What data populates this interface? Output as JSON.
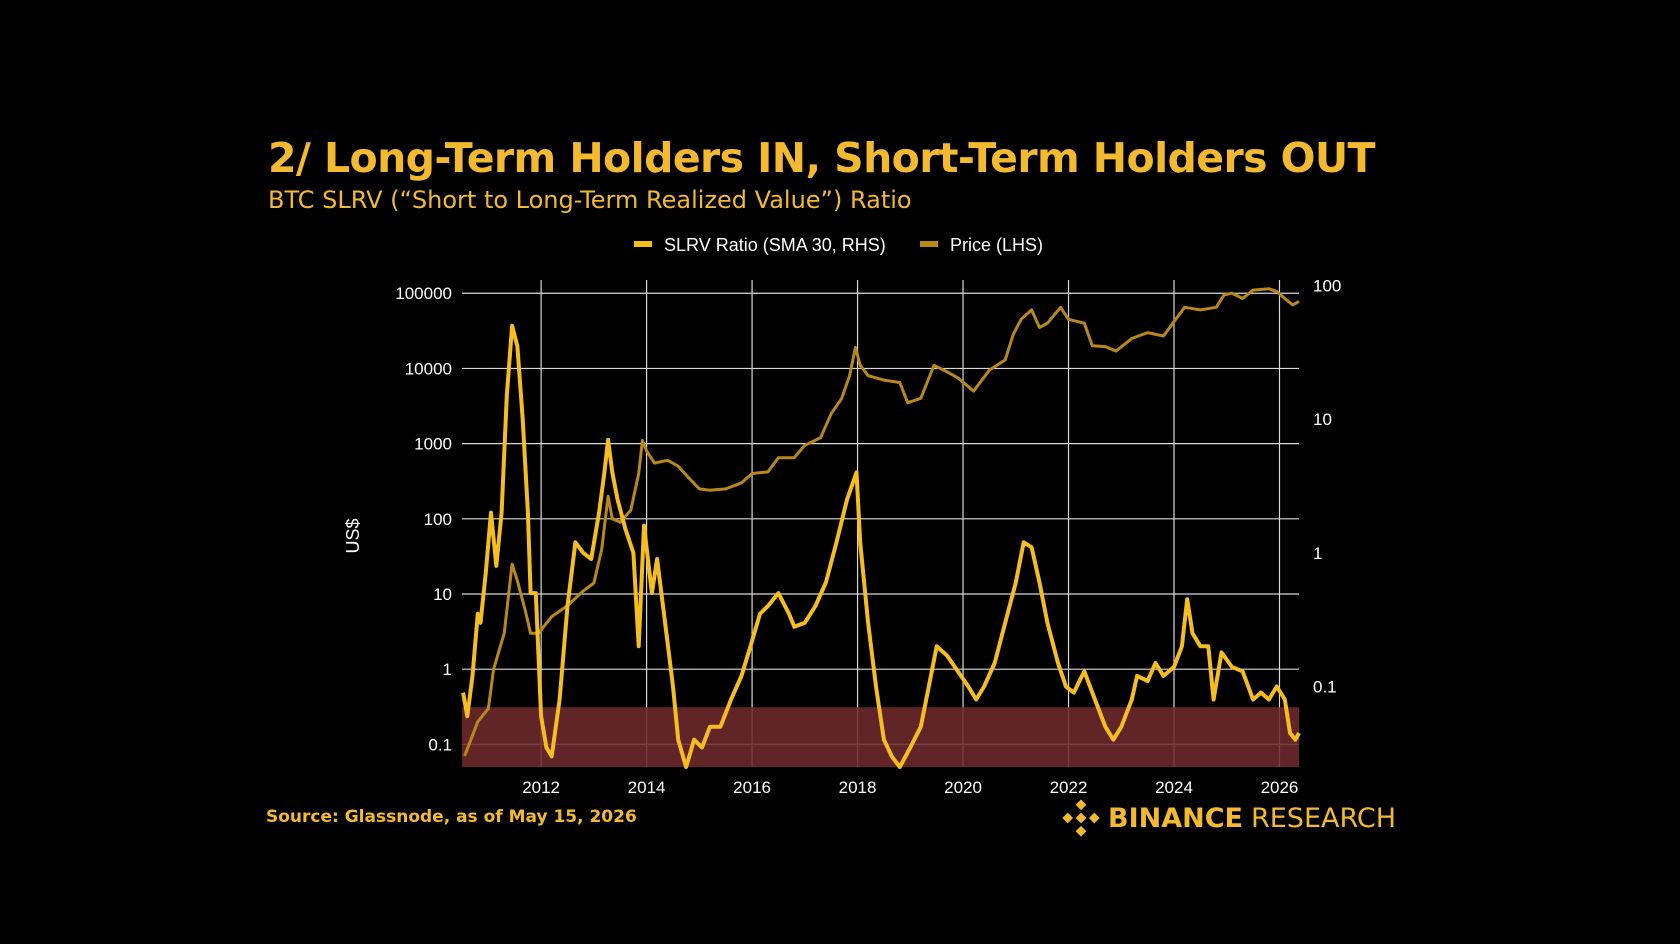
{
  "title": "2/ Long-Term Holders IN, Short-Term Holders OUT",
  "subtitle": "BTC SLRV (“Short to Long-Term Realized Value”) Ratio",
  "source": "Source: Glassnode, as of May 15, 2026",
  "brand": {
    "name_bold": "BINANCE",
    "name_light": "RESEARCH",
    "logo_icon": "binance-diamond-icon"
  },
  "colors": {
    "slrv": "#F5BD1F",
    "price": "#B8891A",
    "band": "#6E2A2E",
    "grid": "#D8D8D8",
    "text": "#FFFFFF",
    "accent": "#F3BA2F"
  },
  "chart_data": {
    "type": "line",
    "legend": {
      "placement": "top-center",
      "entries": [
        "SLRV Ratio (SMA 30, RHS)",
        "Price (LHS)"
      ]
    },
    "ylabel_left": "US$",
    "left_axis": {
      "scale": "log",
      "range": [
        0.05,
        150000
      ],
      "ticks": [
        "0.1",
        "1",
        "10",
        "100",
        "1000",
        "10000",
        "100000"
      ]
    },
    "right_axis": {
      "scale": "log",
      "range": [
        0.025,
        110
      ],
      "ticks": [
        "0.1",
        "1",
        "10",
        "100"
      ]
    },
    "x_axis": {
      "range": [
        2010.5,
        2026.37
      ],
      "ticks": [
        "2012",
        "2014",
        "2016",
        "2018",
        "2020",
        "2022",
        "2024",
        "2026"
      ]
    },
    "grid": true,
    "highlight_band": {
      "axis": "right",
      "from": 0.025,
      "to": 0.07
    },
    "series": [
      {
        "name": "Price (LHS)",
        "axis": "left",
        "points": [
          [
            2010.55,
            0.07
          ],
          [
            2010.8,
            0.2
          ],
          [
            2011.0,
            0.3
          ],
          [
            2011.1,
            1
          ],
          [
            2011.3,
            3
          ],
          [
            2011.45,
            25
          ],
          [
            2011.55,
            15
          ],
          [
            2011.7,
            6
          ],
          [
            2011.8,
            3
          ],
          [
            2011.95,
            3
          ],
          [
            2012.2,
            5
          ],
          [
            2012.5,
            7
          ],
          [
            2012.8,
            11
          ],
          [
            2013.0,
            14
          ],
          [
            2013.15,
            40
          ],
          [
            2013.27,
            200
          ],
          [
            2013.35,
            100
          ],
          [
            2013.5,
            90
          ],
          [
            2013.7,
            130
          ],
          [
            2013.85,
            400
          ],
          [
            2013.92,
            1100
          ],
          [
            2014.0,
            800
          ],
          [
            2014.15,
            550
          ],
          [
            2014.4,
            600
          ],
          [
            2014.6,
            500
          ],
          [
            2014.8,
            350
          ],
          [
            2015.0,
            250
          ],
          [
            2015.2,
            240
          ],
          [
            2015.5,
            250
          ],
          [
            2015.8,
            300
          ],
          [
            2016.0,
            400
          ],
          [
            2016.3,
            420
          ],
          [
            2016.5,
            650
          ],
          [
            2016.8,
            650
          ],
          [
            2017.0,
            950
          ],
          [
            2017.3,
            1200
          ],
          [
            2017.5,
            2500
          ],
          [
            2017.7,
            4000
          ],
          [
            2017.85,
            8000
          ],
          [
            2017.96,
            19000
          ],
          [
            2018.05,
            11000
          ],
          [
            2018.2,
            8000
          ],
          [
            2018.5,
            7000
          ],
          [
            2018.8,
            6500
          ],
          [
            2018.95,
            3500
          ],
          [
            2019.2,
            4000
          ],
          [
            2019.45,
            11000
          ],
          [
            2019.7,
            9000
          ],
          [
            2019.9,
            7500
          ],
          [
            2020.2,
            5000
          ],
          [
            2020.5,
            9500
          ],
          [
            2020.8,
            13000
          ],
          [
            2020.95,
            28000
          ],
          [
            2021.1,
            45000
          ],
          [
            2021.3,
            60000
          ],
          [
            2021.45,
            35000
          ],
          [
            2021.6,
            40000
          ],
          [
            2021.85,
            65000
          ],
          [
            2022.0,
            45000
          ],
          [
            2022.3,
            40000
          ],
          [
            2022.45,
            20000
          ],
          [
            2022.7,
            19500
          ],
          [
            2022.9,
            17000
          ],
          [
            2023.2,
            25000
          ],
          [
            2023.5,
            30000
          ],
          [
            2023.8,
            27000
          ],
          [
            2024.0,
            42000
          ],
          [
            2024.2,
            65000
          ],
          [
            2024.5,
            60000
          ],
          [
            2024.8,
            65000
          ],
          [
            2024.95,
            95000
          ],
          [
            2025.1,
            100000
          ],
          [
            2025.3,
            85000
          ],
          [
            2025.5,
            110000
          ],
          [
            2025.8,
            115000
          ],
          [
            2025.95,
            105000
          ],
          [
            2026.1,
            85000
          ],
          [
            2026.25,
            70000
          ],
          [
            2026.37,
            78000
          ]
        ]
      },
      {
        "name": "SLRV Ratio (SMA 30, RHS)",
        "axis": "right",
        "points": [
          [
            2010.52,
            0.09
          ],
          [
            2010.6,
            0.06
          ],
          [
            2010.7,
            0.12
          ],
          [
            2010.8,
            0.35
          ],
          [
            2010.85,
            0.3
          ],
          [
            2010.95,
            0.7
          ],
          [
            2011.05,
            2
          ],
          [
            2011.15,
            0.8
          ],
          [
            2011.25,
            2
          ],
          [
            2011.35,
            15
          ],
          [
            2011.45,
            50
          ],
          [
            2011.55,
            35
          ],
          [
            2011.65,
            10
          ],
          [
            2011.75,
            2
          ],
          [
            2011.8,
            0.5
          ],
          [
            2011.9,
            0.5
          ],
          [
            2012.0,
            0.06
          ],
          [
            2012.1,
            0.035
          ],
          [
            2012.2,
            0.03
          ],
          [
            2012.35,
            0.08
          ],
          [
            2012.5,
            0.4
          ],
          [
            2012.65,
            1.2
          ],
          [
            2012.8,
            1
          ],
          [
            2012.95,
            0.9
          ],
          [
            2013.1,
            2
          ],
          [
            2013.2,
            4
          ],
          [
            2013.27,
            7
          ],
          [
            2013.35,
            4
          ],
          [
            2013.45,
            2.5
          ],
          [
            2013.6,
            1.5
          ],
          [
            2013.75,
            1
          ],
          [
            2013.85,
            0.2
          ],
          [
            2013.95,
            1.6
          ],
          [
            2014.1,
            0.5
          ],
          [
            2014.2,
            0.9
          ],
          [
            2014.35,
            0.3
          ],
          [
            2014.5,
            0.1
          ],
          [
            2014.6,
            0.04
          ],
          [
            2014.75,
            0.025
          ],
          [
            2014.9,
            0.04
          ],
          [
            2015.05,
            0.035
          ],
          [
            2015.2,
            0.05
          ],
          [
            2015.4,
            0.05
          ],
          [
            2015.6,
            0.08
          ],
          [
            2015.8,
            0.12
          ],
          [
            2016.0,
            0.22
          ],
          [
            2016.15,
            0.35
          ],
          [
            2016.3,
            0.4
          ],
          [
            2016.5,
            0.5
          ],
          [
            2016.7,
            0.35
          ],
          [
            2016.8,
            0.28
          ],
          [
            2017.0,
            0.3
          ],
          [
            2017.2,
            0.4
          ],
          [
            2017.4,
            0.6
          ],
          [
            2017.6,
            1.2
          ],
          [
            2017.8,
            2.5
          ],
          [
            2017.98,
            4
          ],
          [
            2018.05,
            1.2
          ],
          [
            2018.2,
            0.3
          ],
          [
            2018.35,
            0.1
          ],
          [
            2018.5,
            0.04
          ],
          [
            2018.65,
            0.03
          ],
          [
            2018.8,
            0.025
          ],
          [
            2019.0,
            0.035
          ],
          [
            2019.2,
            0.05
          ],
          [
            2019.35,
            0.1
          ],
          [
            2019.5,
            0.2
          ],
          [
            2019.7,
            0.17
          ],
          [
            2019.9,
            0.13
          ],
          [
            2020.1,
            0.1
          ],
          [
            2020.25,
            0.08
          ],
          [
            2020.4,
            0.1
          ],
          [
            2020.6,
            0.15
          ],
          [
            2020.8,
            0.3
          ],
          [
            2021.0,
            0.6
          ],
          [
            2021.15,
            1.2
          ],
          [
            2021.3,
            1.1
          ],
          [
            2021.45,
            0.6
          ],
          [
            2021.6,
            0.3
          ],
          [
            2021.8,
            0.15
          ],
          [
            2021.95,
            0.1
          ],
          [
            2022.1,
            0.09
          ],
          [
            2022.3,
            0.13
          ],
          [
            2022.5,
            0.08
          ],
          [
            2022.7,
            0.05
          ],
          [
            2022.85,
            0.04
          ],
          [
            2023.0,
            0.05
          ],
          [
            2023.2,
            0.08
          ],
          [
            2023.3,
            0.12
          ],
          [
            2023.5,
            0.11
          ],
          [
            2023.65,
            0.15
          ],
          [
            2023.8,
            0.12
          ],
          [
            2024.0,
            0.14
          ],
          [
            2024.15,
            0.2
          ],
          [
            2024.25,
            0.45
          ],
          [
            2024.35,
            0.25
          ],
          [
            2024.5,
            0.2
          ],
          [
            2024.65,
            0.2
          ],
          [
            2024.75,
            0.08
          ],
          [
            2024.9,
            0.18
          ],
          [
            2025.1,
            0.14
          ],
          [
            2025.3,
            0.13
          ],
          [
            2025.5,
            0.08
          ],
          [
            2025.65,
            0.09
          ],
          [
            2025.8,
            0.08
          ],
          [
            2025.95,
            0.1
          ],
          [
            2026.1,
            0.08
          ],
          [
            2026.2,
            0.045
          ],
          [
            2026.3,
            0.04
          ],
          [
            2026.37,
            0.045
          ]
        ]
      }
    ]
  }
}
